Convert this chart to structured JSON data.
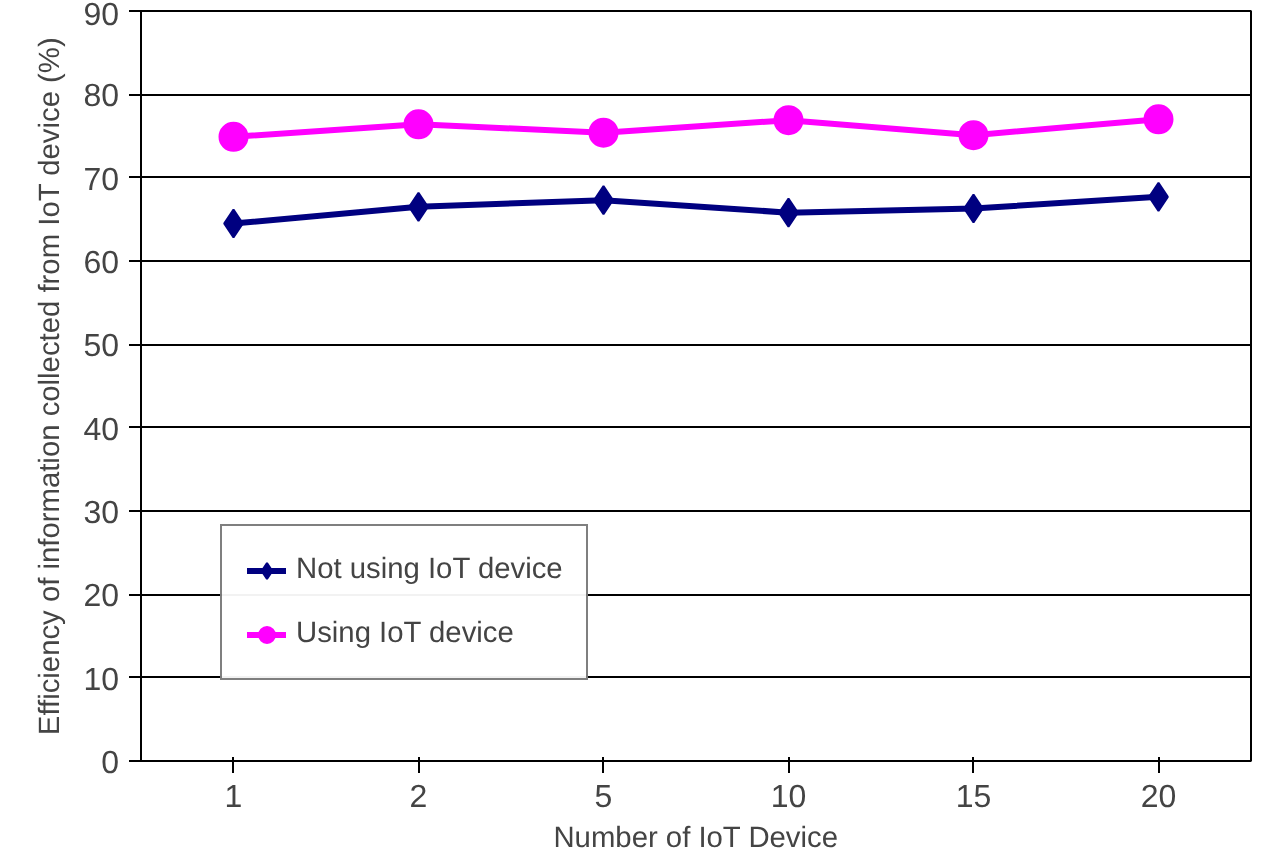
{
  "chart_data": {
    "type": "line",
    "xlabel": "Number of IoT Device",
    "ylabel": "Efficiency of information collected from IoT device (%)",
    "categories": [
      "1",
      "2",
      "5",
      "10",
      "15",
      "20"
    ],
    "series": [
      {
        "name": "Not using IoT device",
        "color": "#000080",
        "marker": "diamond",
        "values": [
          64.5,
          66.5,
          67.3,
          65.8,
          66.3,
          67.7
        ]
      },
      {
        "name": "Using IoT device",
        "color": "#ff00ff",
        "marker": "circle",
        "values": [
          74.9,
          76.4,
          75.4,
          76.9,
          75.1,
          77.0
        ]
      }
    ],
    "ylim": [
      0,
      90
    ],
    "yticks": [
      0,
      10,
      20,
      30,
      40,
      50,
      60,
      70,
      80,
      90
    ],
    "grid": "y",
    "legend": "bottom left",
    "line_style": "solid"
  }
}
